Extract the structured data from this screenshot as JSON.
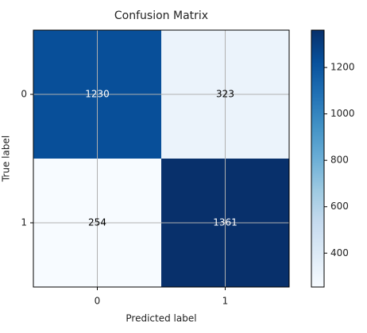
{
  "chart_data": {
    "type": "heatmap",
    "title": "Confusion Matrix",
    "x_label": "Predicted label",
    "y_label": "True label",
    "x_categories": [
      "0",
      "1"
    ],
    "y_categories": [
      "0",
      "1"
    ],
    "values": [
      [
        1230,
        323
      ],
      [
        254,
        1361
      ]
    ],
    "clim": [
      254,
      1361
    ],
    "cticks": [
      400,
      600,
      800,
      1000,
      1200
    ],
    "colormap": [
      "#f7fbff",
      "#deebf7",
      "#c6dbef",
      "#9ecae1",
      "#6baed6",
      "#4292c6",
      "#2171b5",
      "#08519c",
      "#08306b"
    ],
    "grid": true
  }
}
